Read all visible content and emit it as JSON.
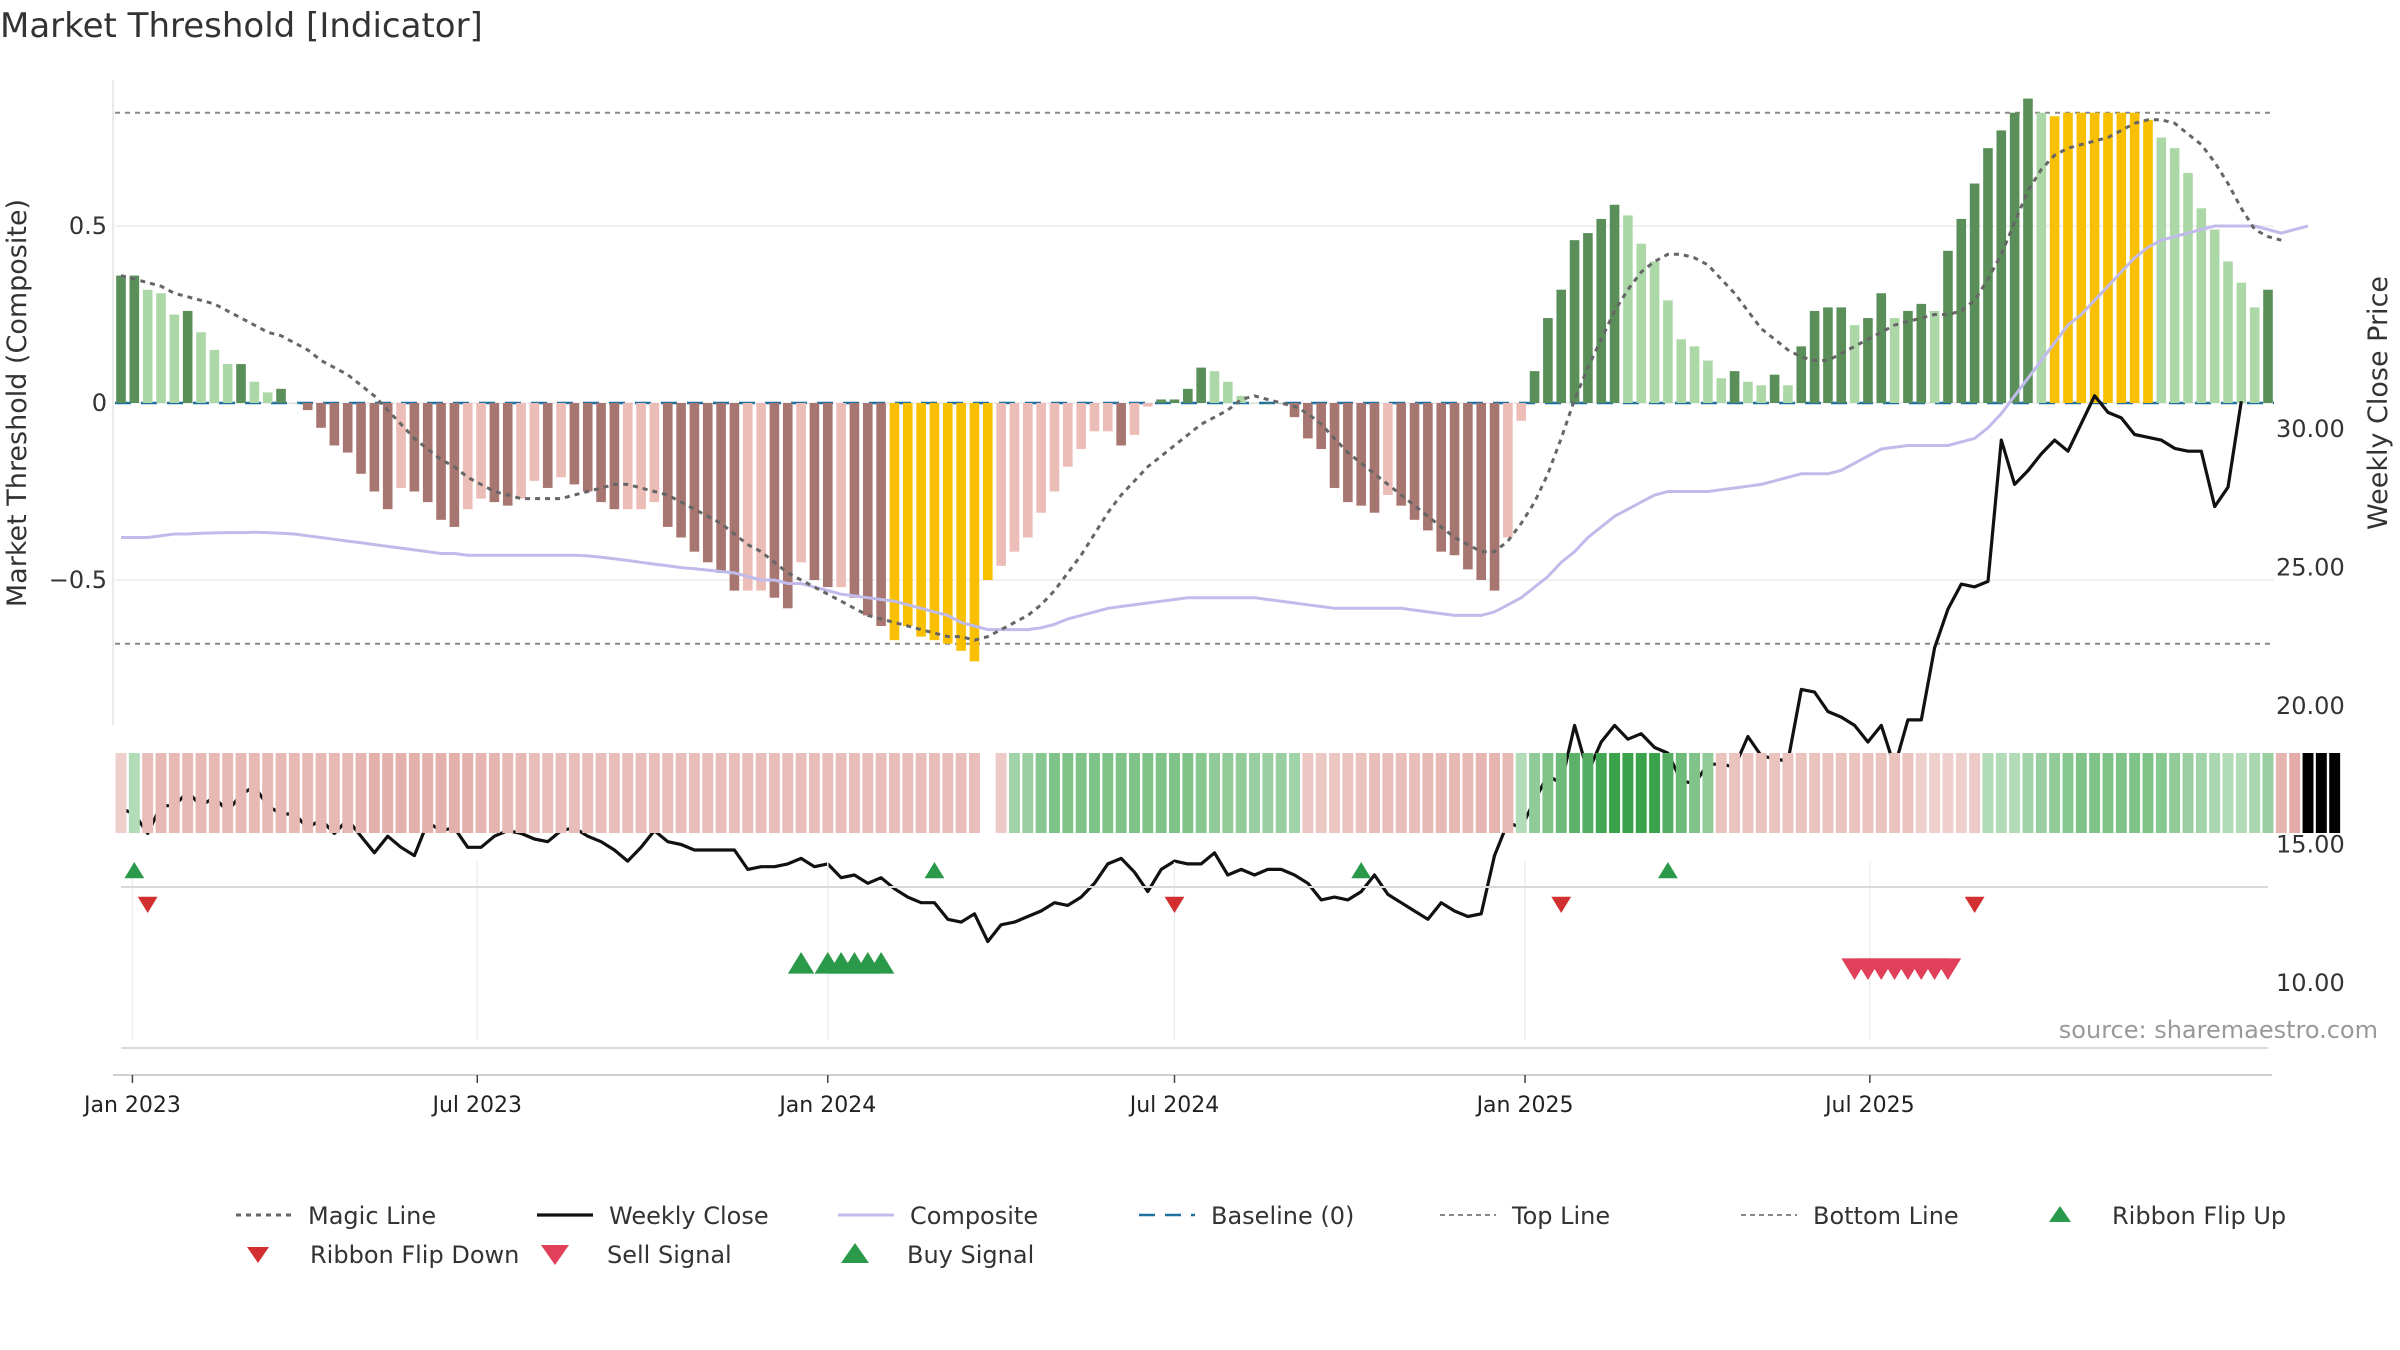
{
  "chart_data": {
    "type": "composite-indicator",
    "title": "Market Threshold [Indicator]",
    "ylabel_left": "Market Threshold (Composite)",
    "ylabel_right": "Weekly Close Price",
    "left_ticks": [
      0.5,
      0,
      -0.5
    ],
    "left_tick_labels": [
      "0.5",
      "0",
      "−0.5"
    ],
    "right_ticks": [
      30,
      25,
      20,
      15,
      10
    ],
    "right_tick_labels": [
      "30.00",
      "25.00",
      "20.00",
      "15.00",
      "10.00"
    ],
    "ylim_left": [
      -0.9,
      0.92
    ],
    "ylim_right": [
      9,
      33
    ],
    "x_tick_labels": [
      "Jan 2023",
      "Jul 2023",
      "Jan 2024",
      "Jul 2024",
      "Jan 2025",
      "Jul 2025"
    ],
    "x_start": "2022-12-26",
    "top_line": 0.82,
    "bottom_line": -0.68,
    "baseline": 0,
    "source": "source: sharemaestro.com",
    "legend": [
      "Magic Line",
      "Weekly Close",
      "Composite",
      "Baseline (0)",
      "Top Line",
      "Bottom Line",
      "Ribbon Flip Up",
      "Ribbon Flip Down",
      "Sell Signal",
      "Buy Signal"
    ],
    "colors": {
      "bar_pos_dark": "#5a8f5a",
      "bar_pos_light": "#acd8a8",
      "bar_neg_dark": "#a87670",
      "bar_neg_light": "#ecbcb6",
      "bar_extreme": "#f8c000",
      "weekly_close": "#111111",
      "composite": "#c0bbea",
      "magic_line": "#666666",
      "baseline": "#1f6f9f",
      "threshold_lines": "#888888",
      "flip_up": "#2a9a4a",
      "flip_down": "#d23030",
      "buy": "#2a9a4a",
      "sell": "#e0405a"
    },
    "bars": [
      0.36,
      0.36,
      0.32,
      0.31,
      0.25,
      0.26,
      0.2,
      0.15,
      0.11,
      0.11,
      0.06,
      0.03,
      0.04,
      0,
      -0.02,
      -0.07,
      -0.12,
      -0.14,
      -0.2,
      -0.25,
      -0.3,
      -0.24,
      -0.25,
      -0.28,
      -0.33,
      -0.35,
      -0.3,
      -0.27,
      -0.28,
      -0.29,
      -0.27,
      -0.22,
      -0.24,
      -0.21,
      -0.23,
      -0.25,
      -0.28,
      -0.3,
      -0.3,
      -0.3,
      -0.28,
      -0.35,
      -0.38,
      -0.42,
      -0.45,
      -0.48,
      -0.53,
      -0.53,
      -0.53,
      -0.55,
      -0.58,
      -0.45,
      -0.5,
      -0.52,
      -0.52,
      -0.55,
      -0.6,
      -0.63,
      -0.67,
      -0.63,
      -0.66,
      -0.67,
      -0.68,
      -0.7,
      -0.73,
      -0.5,
      -0.46,
      -0.42,
      -0.38,
      -0.31,
      -0.25,
      -0.18,
      -0.13,
      -0.08,
      -0.08,
      -0.12,
      -0.09,
      -0.01,
      0.01,
      0.01,
      0.04,
      0.1,
      0.09,
      0.06,
      0.02,
      0,
      0,
      0,
      -0.04,
      -0.1,
      -0.13,
      -0.24,
      -0.28,
      -0.29,
      -0.31,
      -0.26,
      -0.29,
      -0.33,
      -0.36,
      -0.42,
      -0.43,
      -0.47,
      -0.5,
      -0.53,
      -0.38,
      -0.05,
      0.09,
      0.24,
      0.32,
      0.46,
      0.48,
      0.52,
      0.56,
      0.53,
      0.45,
      0.4,
      0.29,
      0.18,
      0.16,
      0.12,
      0.07,
      0.09,
      0.06,
      0.05,
      0.08,
      0.05,
      0.16,
      0.26,
      0.27,
      0.27,
      0.22,
      0.24,
      0.31,
      0.24,
      0.26,
      0.28,
      0.26,
      0.43,
      0.52,
      0.62,
      0.72,
      0.77,
      0.82,
      0.86,
      0.82,
      0.81,
      0.82,
      0.82,
      0.82,
      0.82,
      0.82,
      0.82,
      0.8,
      0.75,
      0.72,
      0.65,
      0.55,
      0.49,
      0.4,
      0.34,
      0.27,
      0.32
    ],
    "extreme_bar_ranges": [
      [
        58,
        65
      ],
      [
        145,
        152
      ]
    ],
    "weekly_close": [
      16.3,
      16.1,
      15.4,
      16.4,
      16.4,
      16.9,
      16.4,
      16.7,
      16.2,
      16.8,
      17.1,
      16.4,
      16.1,
      16.1,
      15.6,
      15.9,
      15.4,
      15.9,
      15.3,
      14.7,
      15.3,
      14.9,
      14.6,
      15.8,
      15.5,
      15.6,
      14.9,
      14.9,
      15.3,
      15.5,
      15.4,
      15.2,
      15.1,
      15.5,
      15.6,
      15.3,
      15.1,
      14.8,
      14.4,
      14.9,
      15.5,
      15.1,
      15.0,
      14.8,
      14.8,
      14.8,
      14.8,
      14.1,
      14.2,
      14.2,
      14.3,
      14.5,
      14.2,
      14.3,
      13.8,
      13.9,
      13.6,
      13.8,
      13.4,
      13.1,
      12.9,
      12.9,
      12.3,
      12.2,
      12.5,
      11.5,
      12.1,
      12.2,
      12.4,
      12.6,
      12.9,
      12.8,
      13.1,
      13.6,
      14.3,
      14.5,
      14.0,
      13.3,
      14.1,
      14.4,
      14.3,
      14.3,
      14.7,
      13.9,
      14.1,
      13.9,
      14.1,
      14.1,
      13.9,
      13.6,
      13.0,
      13.1,
      13.0,
      13.3,
      13.9,
      13.2,
      12.9,
      12.6,
      12.3,
      12.9,
      12.6,
      12.4,
      12.5,
      14.6,
      15.8,
      15.6,
      16.6,
      17.5,
      17.2,
      19.3,
      17.6,
      18.7,
      19.3,
      18.8,
      19.0,
      18.5,
      18.3,
      17.3,
      17.2,
      17.9,
      17.9,
      17.8,
      18.9,
      18.2,
      18.1,
      18.0,
      20.6,
      20.5,
      19.8,
      19.6,
      19.3,
      18.7,
      19.3,
      17.8,
      19.5,
      19.5,
      22.1,
      23.5,
      24.4,
      24.3,
      24.5,
      29.6,
      28.0,
      28.5,
      29.1,
      29.6,
      29.2,
      30.2,
      31.2,
      30.6,
      30.4,
      29.8,
      29.7,
      29.6,
      29.3,
      29.2,
      29.2,
      27.2,
      27.9,
      31.0
    ],
    "composite": [
      -0.38,
      -0.38,
      -0.38,
      -0.375,
      -0.37,
      -0.37,
      -0.368,
      -0.367,
      -0.366,
      -0.366,
      -0.365,
      -0.366,
      -0.368,
      -0.37,
      -0.375,
      -0.38,
      -0.385,
      -0.39,
      -0.395,
      -0.4,
      -0.405,
      -0.41,
      -0.415,
      -0.42,
      -0.425,
      -0.425,
      -0.43,
      -0.43,
      -0.43,
      -0.43,
      -0.43,
      -0.43,
      -0.43,
      -0.43,
      -0.43,
      -0.432,
      -0.436,
      -0.44,
      -0.445,
      -0.45,
      -0.455,
      -0.46,
      -0.465,
      -0.468,
      -0.472,
      -0.476,
      -0.48,
      -0.49,
      -0.5,
      -0.5,
      -0.51,
      -0.51,
      -0.52,
      -0.53,
      -0.54,
      -0.545,
      -0.55,
      -0.555,
      -0.56,
      -0.57,
      -0.58,
      -0.59,
      -0.6,
      -0.62,
      -0.63,
      -0.64,
      -0.64,
      -0.64,
      -0.64,
      -0.635,
      -0.625,
      -0.61,
      -0.6,
      -0.59,
      -0.58,
      -0.575,
      -0.57,
      -0.565,
      -0.56,
      -0.555,
      -0.55,
      -0.55,
      -0.55,
      -0.55,
      -0.55,
      -0.55,
      -0.555,
      -0.56,
      -0.565,
      -0.57,
      -0.575,
      -0.58,
      -0.58,
      -0.58,
      -0.58,
      -0.58,
      -0.58,
      -0.585,
      -0.59,
      -0.595,
      -0.6,
      -0.6,
      -0.6,
      -0.59,
      -0.57,
      -0.55,
      -0.52,
      -0.49,
      -0.45,
      -0.42,
      -0.38,
      -0.35,
      -0.32,
      -0.3,
      -0.28,
      -0.26,
      -0.25,
      -0.25,
      -0.25,
      -0.25,
      -0.245,
      -0.24,
      -0.235,
      -0.23,
      -0.22,
      -0.21,
      -0.2,
      -0.2,
      -0.2,
      -0.19,
      -0.17,
      -0.15,
      -0.13,
      -0.125,
      -0.12,
      -0.12,
      -0.12,
      -0.12,
      -0.11,
      -0.1,
      -0.07,
      -0.03,
      0.02,
      0.07,
      0.12,
      0.17,
      0.22,
      0.25,
      0.29,
      0.33,
      0.37,
      0.41,
      0.44,
      0.46,
      0.47,
      0.48,
      0.49,
      0.5,
      0.5,
      0.5,
      0.5,
      0.49,
      0.48,
      0.49,
      0.5
    ],
    "magic_line": [
      0.36,
      0.35,
      0.34,
      0.33,
      0.31,
      0.3,
      0.29,
      0.28,
      0.26,
      0.24,
      0.22,
      0.2,
      0.19,
      0.17,
      0.15,
      0.12,
      0.1,
      0.08,
      0.05,
      0.02,
      -0.02,
      -0.06,
      -0.1,
      -0.13,
      -0.16,
      -0.18,
      -0.21,
      -0.23,
      -0.25,
      -0.26,
      -0.27,
      -0.27,
      -0.27,
      -0.27,
      -0.26,
      -0.25,
      -0.24,
      -0.23,
      -0.23,
      -0.24,
      -0.25,
      -0.26,
      -0.28,
      -0.3,
      -0.32,
      -0.34,
      -0.37,
      -0.4,
      -0.42,
      -0.45,
      -0.48,
      -0.5,
      -0.52,
      -0.54,
      -0.56,
      -0.58,
      -0.6,
      -0.61,
      -0.62,
      -0.63,
      -0.64,
      -0.65,
      -0.66,
      -0.66,
      -0.67,
      -0.66,
      -0.64,
      -0.62,
      -0.6,
      -0.57,
      -0.53,
      -0.48,
      -0.43,
      -0.37,
      -0.31,
      -0.26,
      -0.22,
      -0.18,
      -0.15,
      -0.12,
      -0.09,
      -0.06,
      -0.04,
      -0.02,
      0.01,
      0.02,
      0.01,
      0,
      -0.01,
      -0.03,
      -0.06,
      -0.1,
      -0.14,
      -0.17,
      -0.2,
      -0.23,
      -0.26,
      -0.29,
      -0.32,
      -0.35,
      -0.38,
      -0.4,
      -0.42,
      -0.42,
      -0.39,
      -0.34,
      -0.28,
      -0.2,
      -0.1,
      0.01,
      0.1,
      0.18,
      0.26,
      0.32,
      0.37,
      0.4,
      0.42,
      0.42,
      0.41,
      0.39,
      0.35,
      0.31,
      0.26,
      0.21,
      0.18,
      0.15,
      0.13,
      0.12,
      0.12,
      0.14,
      0.16,
      0.18,
      0.2,
      0.22,
      0.23,
      0.24,
      0.25,
      0.25,
      0.26,
      0.29,
      0.35,
      0.42,
      0.51,
      0.6,
      0.66,
      0.7,
      0.72,
      0.73,
      0.74,
      0.75,
      0.77,
      0.79,
      0.8,
      0.8,
      0.79,
      0.76,
      0.73,
      0.68,
      0.62,
      0.55,
      0.49,
      0.47,
      0.46
    ],
    "ribbon": [
      -1,
      1,
      -1,
      -1,
      -1,
      -1,
      -1,
      -1,
      -1,
      -1,
      -1,
      -1,
      -1,
      -1,
      -1,
      -1,
      -1,
      -1,
      -1,
      -1,
      -1,
      -1,
      -1,
      -1,
      -1,
      -1,
      -1,
      -1,
      -1,
      -1,
      -1,
      -1,
      -1,
      -1,
      -1,
      -1,
      -1,
      -1,
      -1,
      -1,
      -1,
      -1,
      -1,
      -1,
      -1,
      -1,
      -1,
      -1,
      -1,
      -1,
      -1,
      -1,
      -1,
      -1,
      -1,
      -1,
      -1,
      -1,
      -1,
      -1,
      -1,
      -1,
      -1,
      -1,
      -1,
      0,
      -1,
      1,
      1,
      1,
      1,
      1,
      1,
      1,
      1,
      1,
      1,
      1,
      1,
      1,
      1,
      1,
      1,
      1,
      1,
      1,
      1,
      1,
      1,
      -1,
      -1,
      -1,
      -1,
      -1,
      -1,
      -1,
      -1,
      -1,
      -1,
      -1,
      -1,
      -1,
      -1,
      -1,
      -1,
      1,
      1,
      1,
      1,
      1,
      1,
      1,
      1,
      1,
      1,
      1,
      1,
      1,
      1,
      1,
      -1,
      -1,
      -1,
      -1,
      -1,
      -1,
      -1,
      -1,
      -1,
      -1,
      -1,
      -1,
      -1,
      -1,
      -1,
      -1,
      -1,
      -1,
      -1,
      -1,
      1,
      1,
      1,
      1,
      1,
      1,
      1,
      1,
      1,
      1,
      1,
      1,
      1,
      1,
      1,
      1,
      1,
      1,
      1,
      1,
      1,
      1,
      -1,
      -1,
      -1,
      -1,
      -1
    ],
    "ribbon_intensity": [
      0.25,
      0.3,
      0.45,
      0.5,
      0.5,
      0.5,
      0.5,
      0.5,
      0.5,
      0.5,
      0.5,
      0.5,
      0.5,
      0.5,
      0.5,
      0.5,
      0.5,
      0.5,
      0.55,
      0.6,
      0.6,
      0.6,
      0.6,
      0.6,
      0.6,
      0.6,
      0.6,
      0.55,
      0.55,
      0.5,
      0.5,
      0.45,
      0.45,
      0.45,
      0.45,
      0.45,
      0.45,
      0.45,
      0.45,
      0.45,
      0.45,
      0.45,
      0.45,
      0.45,
      0.45,
      0.45,
      0.45,
      0.45,
      0.45,
      0.45,
      0.45,
      0.45,
      0.45,
      0.45,
      0.45,
      0.45,
      0.45,
      0.45,
      0.45,
      0.45,
      0.45,
      0.45,
      0.45,
      0.45,
      0.45,
      0,
      0.3,
      0.4,
      0.45,
      0.55,
      0.6,
      0.6,
      0.6,
      0.6,
      0.6,
      0.6,
      0.6,
      0.6,
      0.6,
      0.6,
      0.6,
      0.55,
      0.5,
      0.5,
      0.5,
      0.45,
      0.45,
      0.45,
      0.4,
      0.35,
      0.35,
      0.35,
      0.4,
      0.4,
      0.45,
      0.45,
      0.45,
      0.45,
      0.5,
      0.5,
      0.5,
      0.5,
      0.55,
      0.55,
      0.5,
      0.3,
      0.5,
      0.6,
      0.7,
      0.8,
      0.85,
      0.95,
      1,
      1,
      1,
      1,
      0.85,
      0.7,
      0.6,
      0.5,
      0.4,
      0.4,
      0.4,
      0.4,
      0.4,
      0.4,
      0.4,
      0.4,
      0.4,
      0.4,
      0.4,
      0.4,
      0.4,
      0.4,
      0.4,
      0.25,
      0.25,
      0.25,
      0.25,
      0.3,
      0.3,
      0.3,
      0.3,
      0.4,
      0.45,
      0.5,
      0.55,
      0.6,
      0.6,
      0.6,
      0.6,
      0.6,
      0.6,
      0.55,
      0.5,
      0.45,
      0.4,
      0.35,
      0.3,
      0.3,
      0.35,
      0.45,
      0.55,
      0.65
    ],
    "flip_up_weeks": [
      1,
      61,
      93,
      116
    ],
    "flip_down_weeks": [
      2,
      79,
      108,
      139
    ],
    "buy_signal_weeks": [
      51,
      53,
      54,
      55,
      56,
      57
    ],
    "sell_signal_weeks": [
      130,
      131,
      132,
      133,
      134,
      135,
      136,
      137
    ]
  }
}
